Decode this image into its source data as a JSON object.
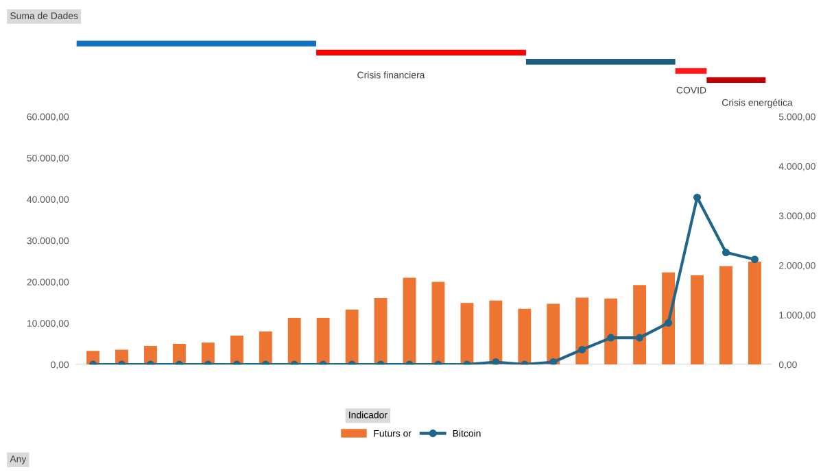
{
  "chart_data": {
    "type": "bar",
    "categories": [
      null,
      null,
      null,
      null,
      null,
      null,
      null,
      null,
      null,
      null,
      null,
      null,
      null,
      null,
      null,
      null,
      null,
      null,
      null,
      null,
      null,
      null,
      null,
      null
    ],
    "series": [
      {
        "name": "Futurs or",
        "color": "#ed7431",
        "values": [
          3300,
          3600,
          4500,
          5000,
          5300,
          7000,
          8000,
          11300,
          11300,
          13300,
          16100,
          21000,
          20000,
          14900,
          15500,
          13500,
          14700,
          16200,
          16000,
          19200,
          22300,
          21600,
          23800,
          24900
        ]
      },
      {
        "name": "Bitcoin",
        "type": "line",
        "axis": "y2",
        "color": "#1f6689",
        "values": [
          0,
          0,
          0,
          0,
          0,
          0,
          0,
          0,
          0,
          0,
          0,
          0,
          0,
          0,
          50,
          0,
          50,
          300,
          540,
          540,
          840,
          3370,
          2260,
          2120
        ]
      }
    ],
    "ylim": [
      0,
      60000
    ],
    "yticks": [
      {
        "value": 0,
        "label": "0,00"
      },
      {
        "value": 10000,
        "label": "10.000,00"
      },
      {
        "value": 20000,
        "label": "20.000,00"
      },
      {
        "value": 30000,
        "label": "30.000,00"
      },
      {
        "value": 40000,
        "label": "40.000,00"
      },
      {
        "value": 50000,
        "label": "50.000,00"
      },
      {
        "value": 60000,
        "label": "60.000,00"
      }
    ],
    "y2lim": [
      0,
      5000
    ],
    "y2ticks": [
      {
        "value": 0,
        "label": "0,00"
      },
      {
        "value": 1000,
        "label": "1.000,00"
      },
      {
        "value": 2000,
        "label": "2.000,00"
      },
      {
        "value": 3000,
        "label": "3.000,00"
      },
      {
        "value": 4000,
        "label": "4.000,00"
      },
      {
        "value": 5000,
        "label": "5.000,00"
      }
    ],
    "marker": "circle",
    "grid": false,
    "legend": "bottom",
    "legend_title": "Indicador",
    "tick_labels": "y",
    "annotations": [
      "Suma de Dades",
      "Crisis financiera",
      "COVID",
      "Crisis energética",
      "Any"
    ]
  }
}
